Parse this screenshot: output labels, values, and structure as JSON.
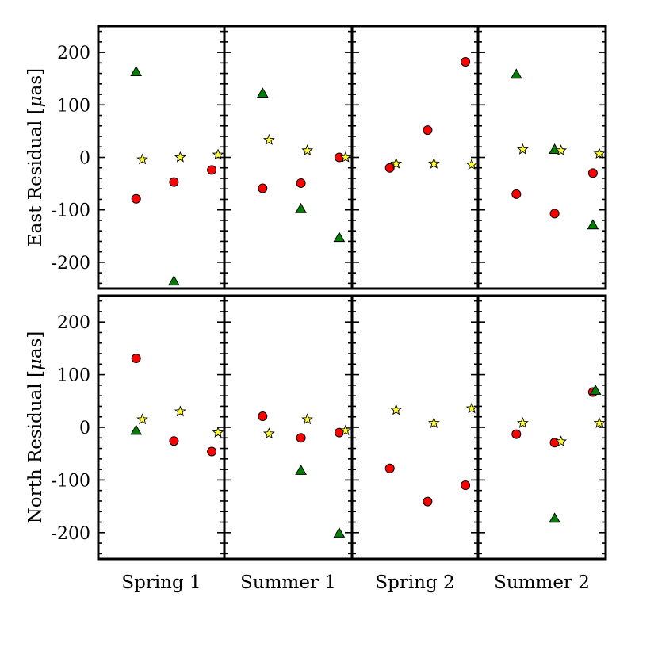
{
  "chart_data": {
    "type": "scatter",
    "columns": [
      "Spring 1",
      "Summer 1",
      "Spring 2",
      "Summer 2"
    ],
    "ylim": [
      -250,
      250
    ],
    "yticks": [
      200,
      100,
      0,
      -100,
      -200
    ],
    "ytick_labels": [
      "200",
      "100",
      "0",
      "-100",
      "-200"
    ],
    "marker_colors": {
      "circle": "#ff0000",
      "triangle": "#008000",
      "star": "#ffff33"
    },
    "panels": [
      {
        "ylabel_prefix": "East Residual [",
        "ylabel_mu": "μ",
        "ylabel_suffix": "as]",
        "points": [
          {
            "col": 0,
            "x": 0.3,
            "y": -79,
            "marker": "circle"
          },
          {
            "col": 0,
            "x": 0.6,
            "y": -47,
            "marker": "circle"
          },
          {
            "col": 0,
            "x": 0.9,
            "y": -24,
            "marker": "circle"
          },
          {
            "col": 0,
            "x": 0.3,
            "y": 163,
            "marker": "triangle"
          },
          {
            "col": 0,
            "x": 0.6,
            "y": -236,
            "marker": "triangle"
          },
          {
            "col": 0,
            "x": 0.35,
            "y": -4,
            "marker": "star"
          },
          {
            "col": 0,
            "x": 0.65,
            "y": 0,
            "marker": "star"
          },
          {
            "col": 0,
            "x": 0.95,
            "y": 5,
            "marker": "star"
          },
          {
            "col": 1,
            "x": 0.3,
            "y": -59,
            "marker": "circle"
          },
          {
            "col": 1,
            "x": 0.6,
            "y": -49,
            "marker": "circle"
          },
          {
            "col": 1,
            "x": 0.9,
            "y": 0,
            "marker": "circle"
          },
          {
            "col": 1,
            "x": 0.3,
            "y": 122,
            "marker": "triangle"
          },
          {
            "col": 1,
            "x": 0.6,
            "y": -98,
            "marker": "triangle"
          },
          {
            "col": 1,
            "x": 0.9,
            "y": -153,
            "marker": "triangle"
          },
          {
            "col": 1,
            "x": 0.35,
            "y": 33,
            "marker": "star"
          },
          {
            "col": 1,
            "x": 0.65,
            "y": 13,
            "marker": "star"
          },
          {
            "col": 1,
            "x": 0.95,
            "y": 0,
            "marker": "star"
          },
          {
            "col": 2,
            "x": 0.3,
            "y": -20,
            "marker": "circle"
          },
          {
            "col": 2,
            "x": 0.6,
            "y": 52,
            "marker": "circle"
          },
          {
            "col": 2,
            "x": 0.9,
            "y": 182,
            "marker": "circle"
          },
          {
            "col": 2,
            "x": 0.35,
            "y": -12,
            "marker": "star"
          },
          {
            "col": 2,
            "x": 0.65,
            "y": -12,
            "marker": "star"
          },
          {
            "col": 2,
            "x": 0.95,
            "y": -14,
            "marker": "star"
          },
          {
            "col": 3,
            "x": 0.3,
            "y": -70,
            "marker": "circle"
          },
          {
            "col": 3,
            "x": 0.6,
            "y": -107,
            "marker": "circle"
          },
          {
            "col": 3,
            "x": 0.9,
            "y": -30,
            "marker": "circle"
          },
          {
            "col": 3,
            "x": 0.3,
            "y": 158,
            "marker": "triangle"
          },
          {
            "col": 3,
            "x": 0.6,
            "y": 15,
            "marker": "triangle"
          },
          {
            "col": 3,
            "x": 0.9,
            "y": -129,
            "marker": "triangle"
          },
          {
            "col": 3,
            "x": 0.35,
            "y": 15,
            "marker": "star"
          },
          {
            "col": 3,
            "x": 0.65,
            "y": 13,
            "marker": "star"
          },
          {
            "col": 3,
            "x": 0.95,
            "y": 7,
            "marker": "star"
          }
        ]
      },
      {
        "ylabel_prefix": "North Residual [",
        "ylabel_mu": "μ",
        "ylabel_suffix": "as]",
        "points": [
          {
            "col": 0,
            "x": 0.3,
            "y": 131,
            "marker": "circle"
          },
          {
            "col": 0,
            "x": 0.6,
            "y": -26,
            "marker": "circle"
          },
          {
            "col": 0,
            "x": 0.9,
            "y": -46,
            "marker": "circle"
          },
          {
            "col": 0,
            "x": 0.3,
            "y": -6,
            "marker": "triangle"
          },
          {
            "col": 0,
            "x": 0.35,
            "y": 15,
            "marker": "star"
          },
          {
            "col": 0,
            "x": 0.65,
            "y": 30,
            "marker": "star"
          },
          {
            "col": 0,
            "x": 0.95,
            "y": -10,
            "marker": "star"
          },
          {
            "col": 1,
            "x": 0.3,
            "y": 21,
            "marker": "circle"
          },
          {
            "col": 1,
            "x": 0.6,
            "y": -20,
            "marker": "circle"
          },
          {
            "col": 1,
            "x": 0.9,
            "y": -10,
            "marker": "circle"
          },
          {
            "col": 1,
            "x": 0.6,
            "y": -82,
            "marker": "triangle"
          },
          {
            "col": 1,
            "x": 0.9,
            "y": -201,
            "marker": "triangle"
          },
          {
            "col": 1,
            "x": 0.35,
            "y": -12,
            "marker": "star"
          },
          {
            "col": 1,
            "x": 0.65,
            "y": 15,
            "marker": "star"
          },
          {
            "col": 1,
            "x": 0.95,
            "y": -6,
            "marker": "star"
          },
          {
            "col": 2,
            "x": 0.3,
            "y": -78,
            "marker": "circle"
          },
          {
            "col": 2,
            "x": 0.6,
            "y": -141,
            "marker": "circle"
          },
          {
            "col": 2,
            "x": 0.9,
            "y": -110,
            "marker": "circle"
          },
          {
            "col": 2,
            "x": 0.35,
            "y": 33,
            "marker": "star"
          },
          {
            "col": 2,
            "x": 0.65,
            "y": 8,
            "marker": "star"
          },
          {
            "col": 2,
            "x": 0.95,
            "y": 36,
            "marker": "star"
          },
          {
            "col": 3,
            "x": 0.3,
            "y": -13,
            "marker": "circle"
          },
          {
            "col": 3,
            "x": 0.6,
            "y": -29,
            "marker": "circle"
          },
          {
            "col": 3,
            "x": 0.9,
            "y": 67,
            "marker": "circle"
          },
          {
            "col": 3,
            "x": 0.6,
            "y": -173,
            "marker": "triangle"
          },
          {
            "col": 3,
            "x": 0.92,
            "y": 70,
            "marker": "triangle"
          },
          {
            "col": 3,
            "x": 0.35,
            "y": 8,
            "marker": "star"
          },
          {
            "col": 3,
            "x": 0.65,
            "y": -27,
            "marker": "star"
          },
          {
            "col": 3,
            "x": 0.95,
            "y": 8,
            "marker": "star"
          }
        ]
      }
    ]
  }
}
